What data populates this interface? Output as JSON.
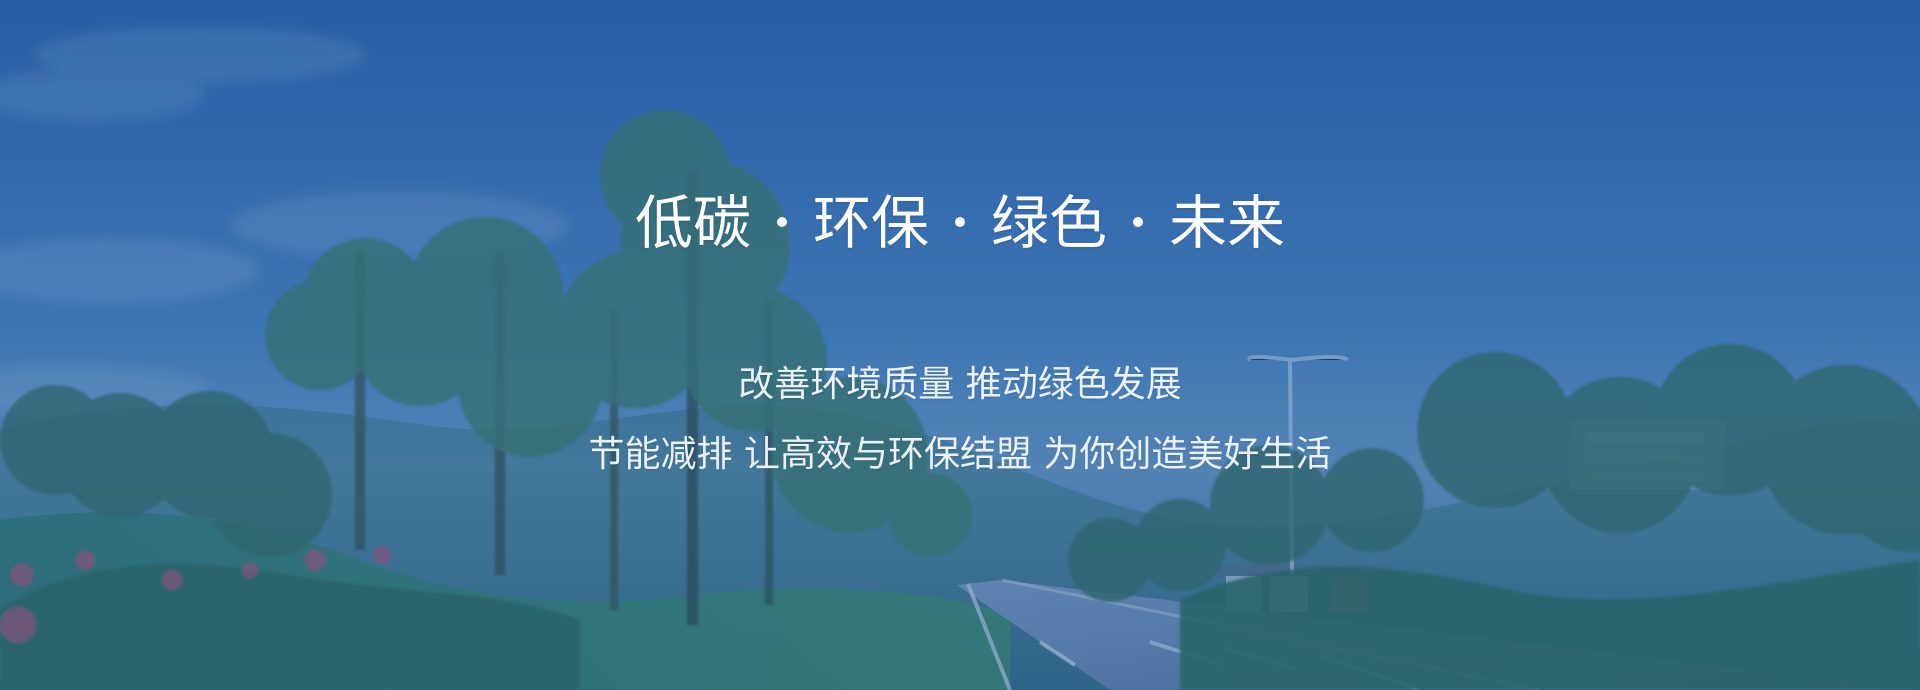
{
  "banner": {
    "headline": {
      "words": [
        "低碳",
        "环保",
        "绿色",
        "未来"
      ]
    },
    "subtitle_lines": [
      "改善环境质量 推动绿色发展",
      "节能减排 让高效与环保结盟 为你创造美好生活"
    ]
  },
  "colors": {
    "overlay": "#265BA3",
    "text": "#FFFFFF"
  }
}
